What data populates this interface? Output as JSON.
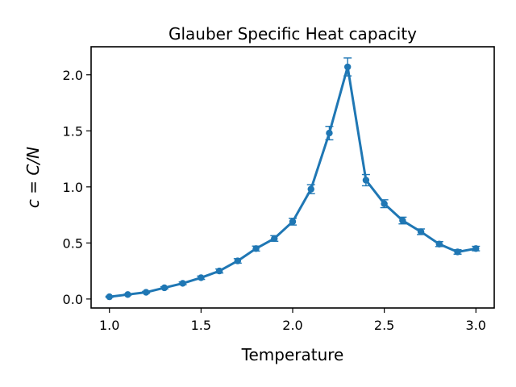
{
  "chart_data": {
    "type": "line",
    "title": "Glauber Specific Heat capacity",
    "xlabel": "Temperature",
    "ylabel": "c = C/N",
    "xlim": [
      0.9,
      3.1
    ],
    "ylim": [
      -0.08,
      2.25
    ],
    "xticks": [
      1.0,
      1.5,
      2.0,
      2.5,
      3.0
    ],
    "xtick_labels": [
      "1.0",
      "1.5",
      "2.0",
      "2.5",
      "3.0"
    ],
    "yticks": [
      0.0,
      0.5,
      1.0,
      1.5,
      2.0
    ],
    "ytick_labels": [
      "0.0",
      "0.5",
      "1.0",
      "1.5",
      "2.0"
    ],
    "grid": false,
    "legend": "none",
    "color": "#1f77b4",
    "series": [
      {
        "x": [
          1.0,
          1.1,
          1.2,
          1.3,
          1.4,
          1.5,
          1.6,
          1.7,
          1.8,
          1.9,
          2.0,
          2.1,
          2.2,
          2.3,
          2.4,
          2.5,
          2.6,
          2.7,
          2.8,
          2.9,
          3.0
        ],
        "values": [
          0.02,
          0.04,
          0.06,
          0.1,
          0.14,
          0.19,
          0.25,
          0.34,
          0.45,
          0.54,
          0.69,
          0.98,
          1.48,
          2.07,
          1.06,
          0.85,
          0.7,
          0.6,
          0.49,
          0.42,
          0.45
        ],
        "errors": [
          0.005,
          0.005,
          0.008,
          0.01,
          0.012,
          0.015,
          0.018,
          0.02,
          0.022,
          0.025,
          0.03,
          0.04,
          0.06,
          0.08,
          0.05,
          0.035,
          0.03,
          0.025,
          0.022,
          0.02,
          0.02
        ]
      }
    ]
  }
}
